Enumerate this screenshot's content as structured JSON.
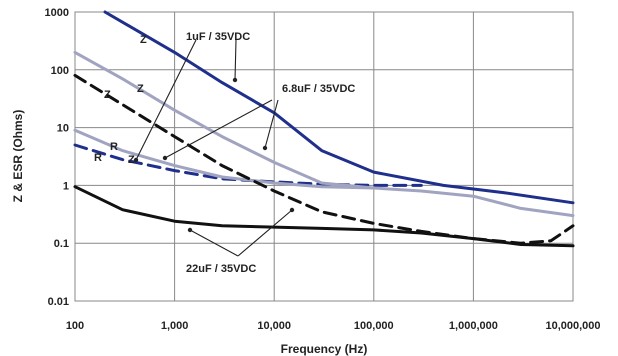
{
  "chart_data": {
    "type": "line",
    "xscale": "log",
    "yscale": "log",
    "xlim": [
      100,
      10000000
    ],
    "ylim": [
      0.01,
      1000
    ],
    "xlabel": "Frequency (Hz)",
    "ylabel": "Z & ESR (Ohms)",
    "xticks": [
      "100",
      "1,000",
      "10,000",
      "100,000",
      "1,000,000",
      "10,000,000"
    ],
    "yticks": [
      "0.01",
      "0.1",
      "1",
      "10",
      "100",
      "1000"
    ],
    "grid": true,
    "series": [
      {
        "name": "Z",
        "cap": "1uF",
        "style": "solid",
        "color": "#1f2f8c",
        "x": [
          200,
          1000,
          3000,
          10000,
          30000,
          100000,
          500000,
          2000000,
          10000000
        ],
        "y": [
          1000,
          200,
          60,
          18,
          4,
          1.7,
          1.0,
          0.75,
          0.5
        ]
      },
      {
        "name": "R",
        "cap": "1uF",
        "style": "dashed",
        "color": "#1f2f8c",
        "x": [
          100,
          300,
          1000,
          3000,
          10000,
          30000,
          100000,
          300000
        ],
        "y": [
          5,
          2.8,
          1.8,
          1.3,
          1.15,
          1.05,
          1.0,
          1.0
        ]
      },
      {
        "name": "Z",
        "cap": "6.8uF",
        "style": "solid",
        "color": "#a0a4c0",
        "x": [
          100,
          300,
          1000,
          3000,
          10000,
          30000,
          100000,
          300000,
          1000000,
          3000000,
          10000000
        ],
        "y": [
          200,
          70,
          20,
          7,
          2.5,
          1.1,
          0.9,
          0.8,
          0.65,
          0.4,
          0.3
        ]
      },
      {
        "name": "R",
        "cap": "6.8uF",
        "style": "solid",
        "color": "#a0a4c0",
        "x": [
          100,
          300,
          1000,
          3000,
          10000,
          30000,
          100000
        ],
        "y": [
          9,
          4,
          2.2,
          1.4,
          1.1,
          0.95,
          0.9
        ]
      },
      {
        "name": "Z",
        "cap": "22uF",
        "style": "dashed",
        "color": "#111111",
        "x": [
          100,
          300,
          1000,
          3000,
          10000,
          30000,
          100000,
          300000,
          1000000,
          3000000,
          6000000,
          10000000
        ],
        "y": [
          80,
          25,
          7,
          2.2,
          0.8,
          0.35,
          0.22,
          0.16,
          0.12,
          0.1,
          0.11,
          0.2
        ]
      },
      {
        "name": "",
        "cap": "22uF",
        "style": "solid",
        "color": "#111111",
        "x": [
          100,
          300,
          1000,
          3000,
          10000,
          30000,
          100000,
          300000,
          1000000,
          3000000,
          10000000
        ],
        "y": [
          0.95,
          0.38,
          0.24,
          0.2,
          0.19,
          0.18,
          0.17,
          0.15,
          0.12,
          0.095,
          0.09
        ]
      }
    ],
    "annotations": [
      {
        "text": "1uF / 35VDC"
      },
      {
        "text": "6.8uF / 35VDC"
      },
      {
        "text": "22uF / 35VDC"
      },
      {
        "text": "Z"
      },
      {
        "text": "Z"
      },
      {
        "text": "Z"
      },
      {
        "text": "R"
      },
      {
        "text": "R"
      },
      {
        "text": "Z"
      }
    ]
  }
}
